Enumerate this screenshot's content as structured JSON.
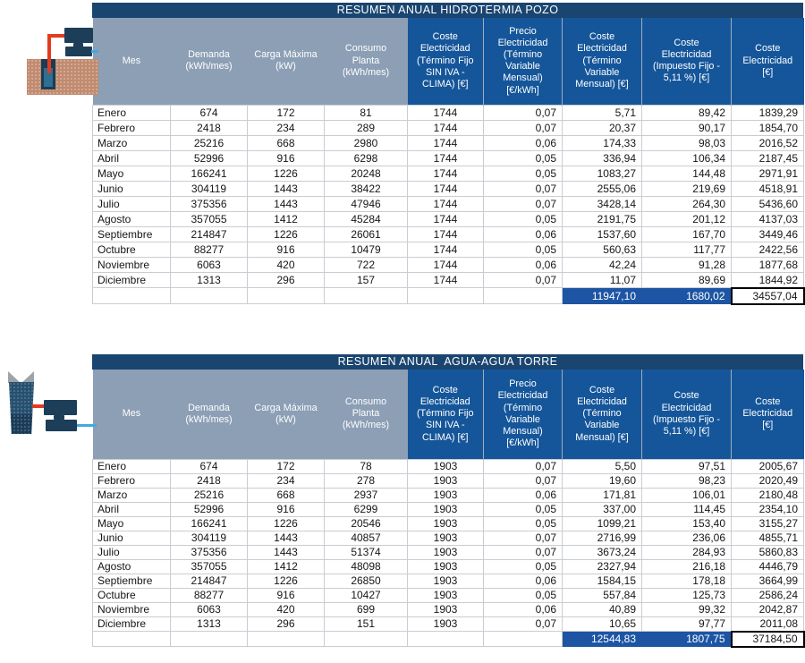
{
  "colors": {
    "title_bar": "#1A4570",
    "header_light": "#8C9FB5",
    "header_dark": "#15569A",
    "total_highlight": "#1D55A4",
    "equipment": "#1C3E59",
    "pipe_hot": "#E23B1E",
    "pipe_cold": "#3FA9E0",
    "ground": "#C18B6F"
  },
  "icons": [
    {
      "id": "pozo",
      "name": "ground-well-heat-pump-icon"
    },
    {
      "id": "torre",
      "name": "cooling-tower-heat-pump-icon"
    }
  ],
  "tables": [
    {
      "id": "pozo",
      "title": "RESUMEN ANUAL HIDROTERMIA POZO",
      "columns": [
        "Mes",
        "Demanda\n(kWh/mes)",
        "Carga Máxima\n(kW)",
        "Consumo\nPlanta\n(kWh/mes)",
        "Coste\nElectricidad\n(Término Fijo\nSIN IVA -\nCLIMA) [€]",
        "Precio\nElectricidad\n(Término\nVariable\nMensual)\n[€/kWh]",
        "Coste\nElectricidad\n(Término\nVariable\nMensual) [€]",
        "Coste\nElectricidad\n(Impuesto Fijo -\n5,11 %) [€]",
        "Coste\nElectricidad\n[€]"
      ],
      "rows": [
        [
          "Enero",
          "674",
          "172",
          "81",
          "1744",
          "0,07",
          "5,71",
          "89,42",
          "1839,29"
        ],
        [
          "Febrero",
          "2418",
          "234",
          "289",
          "1744",
          "0,07",
          "20,37",
          "90,17",
          "1854,70"
        ],
        [
          "Marzo",
          "25216",
          "668",
          "2980",
          "1744",
          "0,06",
          "174,33",
          "98,03",
          "2016,52"
        ],
        [
          "Abril",
          "52996",
          "916",
          "6298",
          "1744",
          "0,05",
          "336,94",
          "106,34",
          "2187,45"
        ],
        [
          "Mayo",
          "166241",
          "1226",
          "20248",
          "1744",
          "0,05",
          "1083,27",
          "144,48",
          "2971,91"
        ],
        [
          "Junio",
          "304119",
          "1443",
          "38422",
          "1744",
          "0,07",
          "2555,06",
          "219,69",
          "4518,91"
        ],
        [
          "Julio",
          "375356",
          "1443",
          "47946",
          "1744",
          "0,07",
          "3428,14",
          "264,30",
          "5436,60"
        ],
        [
          "Agosto",
          "357055",
          "1412",
          "45284",
          "1744",
          "0,05",
          "2191,75",
          "201,12",
          "4137,03"
        ],
        [
          "Septiembre",
          "214847",
          "1226",
          "26061",
          "1744",
          "0,06",
          "1537,60",
          "167,70",
          "3449,46"
        ],
        [
          "Octubre",
          "88277",
          "916",
          "10479",
          "1744",
          "0,05",
          "560,63",
          "117,77",
          "2422,56"
        ],
        [
          "Noviembre",
          "6063",
          "420",
          "722",
          "1744",
          "0,06",
          "42,24",
          "91,28",
          "1877,68"
        ],
        [
          "Diciembre",
          "1313",
          "296",
          "157",
          "1744",
          "0,07",
          "11,07",
          "89,69",
          "1844,92"
        ]
      ],
      "totals": {
        "termino_variable": "11947,10",
        "impuesto_fijo": "1680,02",
        "coste_total": "34557,04"
      }
    },
    {
      "id": "torre",
      "title": "RESUMEN ANUAL  AGUA-AGUA TORRE",
      "columns": [
        "Mes",
        "Demanda\n(kWh/mes)",
        "Carga Máxima\n(kW)",
        "Consumo\nPlanta\n(kWh/mes)",
        "Coste\nElectricidad\n(Término Fijo\nSIN IVA -\nCLIMA) [€]",
        "Precio\nElectricidad\n(Término\nVariable\nMensual)\n[€/kWh]",
        "Coste\nElectricidad\n(Término\nVariable\nMensual) [€]",
        "Coste\nElectricidad\n(Impuesto Fijo -\n5,11 %) [€]",
        "Coste\nElectricidad\n[€]"
      ],
      "rows": [
        [
          "Enero",
          "674",
          "172",
          "78",
          "1903",
          "0,07",
          "5,50",
          "97,51",
          "2005,67"
        ],
        [
          "Febrero",
          "2418",
          "234",
          "278",
          "1903",
          "0,07",
          "19,60",
          "98,23",
          "2020,49"
        ],
        [
          "Marzo",
          "25216",
          "668",
          "2937",
          "1903",
          "0,06",
          "171,81",
          "106,01",
          "2180,48"
        ],
        [
          "Abril",
          "52996",
          "916",
          "6299",
          "1903",
          "0,05",
          "337,00",
          "114,45",
          "2354,10"
        ],
        [
          "Mayo",
          "166241",
          "1226",
          "20546",
          "1903",
          "0,05",
          "1099,21",
          "153,40",
          "3155,27"
        ],
        [
          "Junio",
          "304119",
          "1443",
          "40857",
          "1903",
          "0,07",
          "2716,99",
          "236,06",
          "4855,71"
        ],
        [
          "Julio",
          "375356",
          "1443",
          "51374",
          "1903",
          "0,07",
          "3673,24",
          "284,93",
          "5860,83"
        ],
        [
          "Agosto",
          "357055",
          "1412",
          "48098",
          "1903",
          "0,05",
          "2327,94",
          "216,18",
          "4446,79"
        ],
        [
          "Septiembre",
          "214847",
          "1226",
          "26850",
          "1903",
          "0,06",
          "1584,15",
          "178,18",
          "3664,99"
        ],
        [
          "Octubre",
          "88277",
          "916",
          "10427",
          "1903",
          "0,05",
          "557,84",
          "125,73",
          "2586,24"
        ],
        [
          "Noviembre",
          "6063",
          "420",
          "699",
          "1903",
          "0,06",
          "40,89",
          "99,32",
          "2042,87"
        ],
        [
          "Diciembre",
          "1313",
          "296",
          "151",
          "1903",
          "0,07",
          "10,65",
          "97,77",
          "2011,08"
        ]
      ],
      "totals": {
        "termino_variable": "12544,83",
        "impuesto_fijo": "1807,75",
        "coste_total": "37184,50"
      }
    }
  ]
}
